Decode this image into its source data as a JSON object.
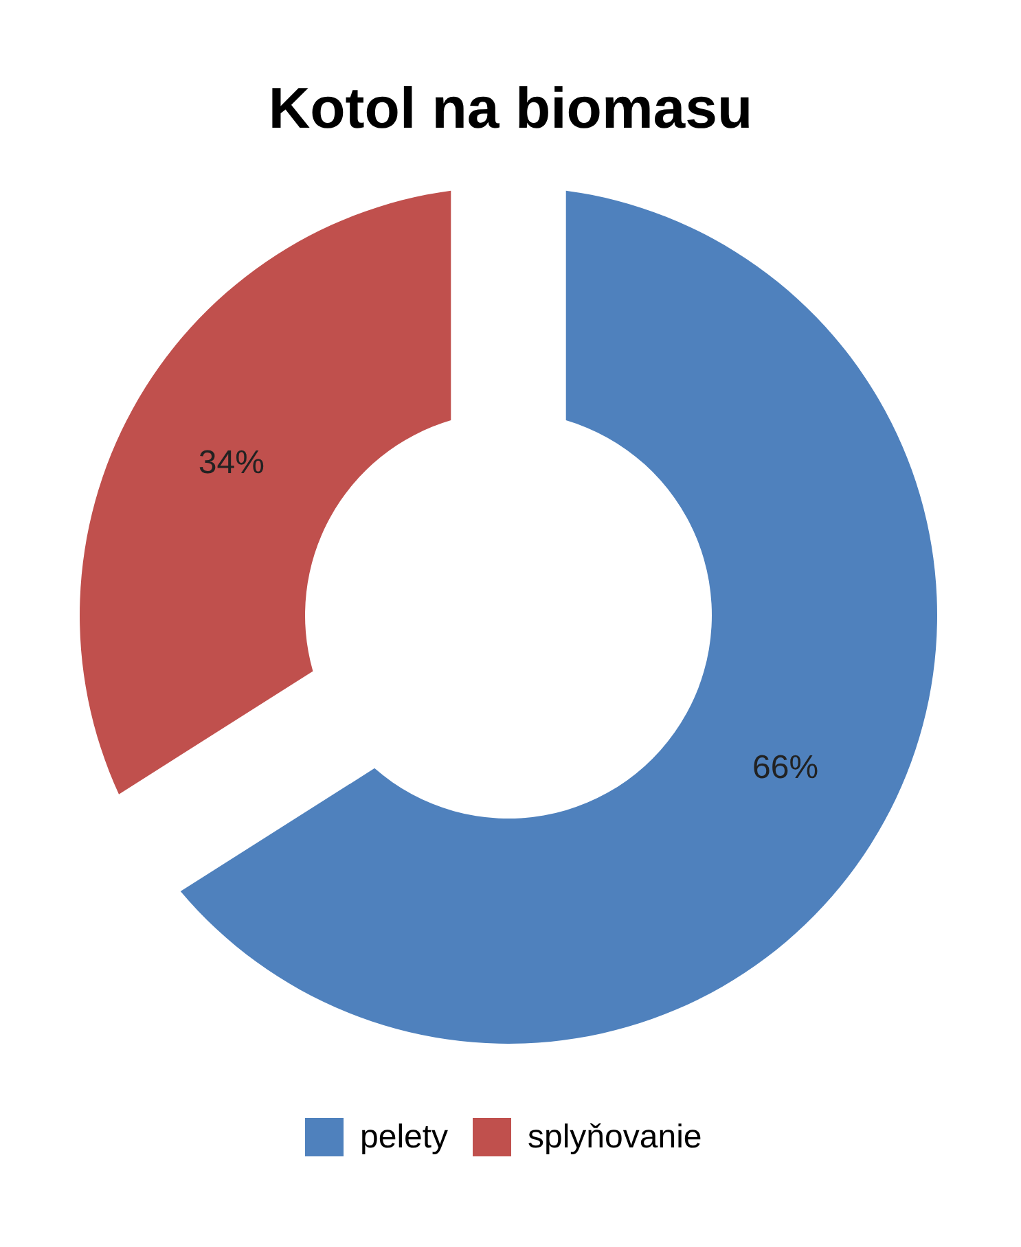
{
  "chart_data": {
    "type": "donut",
    "title": "Kotol na biomasu",
    "categories": [
      "pelety",
      "splyňovanie"
    ],
    "values": [
      66,
      34
    ],
    "colors": [
      "#4f81bd",
      "#c0504d"
    ],
    "value_labels": [
      "66%",
      "34%"
    ],
    "legend": "bottom"
  }
}
